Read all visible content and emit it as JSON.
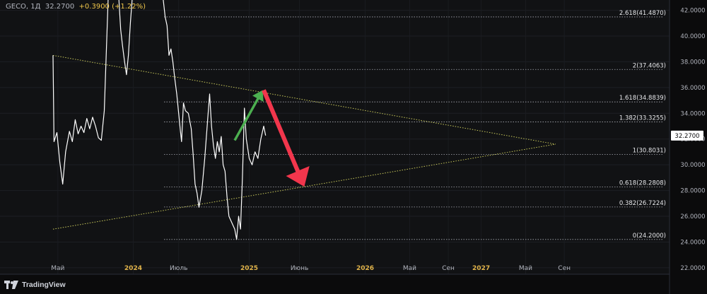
{
  "legend": {
    "symbol": "GECO",
    "interval": "1Д",
    "last": "32.2700",
    "change": "+0.3900",
    "change_pct": "(+1.22%)"
  },
  "branding": {
    "name": "TradingView"
  },
  "colors": {
    "background": "#0b0b0c",
    "plot_background": "#111214",
    "price_line": "#ffffff",
    "triangle_line": "#c8c85a",
    "fib_line": "#a9abb3",
    "up_arrow": "#4caf50",
    "down_arrow": "#f2364c",
    "axis_text": "#b2b5be",
    "year_text": "#e0b34a"
  },
  "chart_data": {
    "type": "line",
    "symbol": "GECO",
    "interval": "1Д",
    "price_axis": {
      "ylim": [
        21.5,
        42.8
      ],
      "ticks": [
        "42.0000",
        "40.0000",
        "38.0000",
        "36.0000",
        "34.0000",
        "32.0000",
        "30.0000",
        "28.0000",
        "26.0000",
        "24.0000",
        "22.0000"
      ],
      "current_price_label": "32.2700"
    },
    "time_axis": {
      "labels": [
        {
          "text": "Май",
          "t": 0.5,
          "year": false
        },
        {
          "text": "2024",
          "t": 8.3,
          "year": true
        },
        {
          "text": "Июль",
          "t": 13.0,
          "year": false
        },
        {
          "text": "2025",
          "t": 20.3,
          "year": true
        },
        {
          "text": "Июнь",
          "t": 25.5,
          "year": false
        },
        {
          "text": "2026",
          "t": 32.3,
          "year": true
        },
        {
          "text": "Май",
          "t": 36.9,
          "year": false
        },
        {
          "text": "Сен",
          "t": 40.9,
          "year": false
        },
        {
          "text": "2027",
          "t": 44.3,
          "year": true
        },
        {
          "text": "Май",
          "t": 48.9,
          "year": false
        },
        {
          "text": "Сен",
          "t": 52.9,
          "year": false
        }
      ]
    },
    "fib_levels": [
      {
        "ratio": "2.618",
        "value": 41.487,
        "label": "2.618(41.4870)"
      },
      {
        "ratio": "2",
        "value": 37.4063,
        "label": "2(37.4063)"
      },
      {
        "ratio": "1.618",
        "value": 34.8839,
        "label": "1.618(34.8839)"
      },
      {
        "ratio": "1.382",
        "value": 33.3255,
        "label": "1.382(33.3255)"
      },
      {
        "ratio": "1",
        "value": 30.8031,
        "label": "1(30.8031)"
      },
      {
        "ratio": "0.618",
        "value": 28.2808,
        "label": "0.618(28.2808)"
      },
      {
        "ratio": "0.382",
        "value": 26.7224,
        "label": "0.382(26.7224)"
      },
      {
        "ratio": "0",
        "value": 24.2,
        "label": "0(24.2000)"
      }
    ],
    "triangle": {
      "upper": [
        {
          "t": 0.0,
          "price": 38.5
        },
        {
          "t": 52.0,
          "price": 31.6
        }
      ],
      "lower": [
        {
          "t": 0.0,
          "price": 25.0
        },
        {
          "t": 52.0,
          "price": 31.6
        }
      ]
    },
    "arrows": [
      {
        "kind": "up",
        "from": {
          "t": 18.8,
          "price": 31.9
        },
        "to": {
          "t": 21.7,
          "price": 35.8
        }
      },
      {
        "kind": "down",
        "from": {
          "t": 21.8,
          "price": 35.8
        },
        "to": {
          "t": 26.0,
          "price": 28.3
        }
      }
    ],
    "series": [
      {
        "points": [
          [
            0.0,
            38.5
          ],
          [
            0.1,
            31.8
          ],
          [
            0.4,
            32.5
          ],
          [
            0.7,
            30.2
          ],
          [
            1.0,
            28.5
          ],
          [
            1.3,
            31.0
          ],
          [
            1.7,
            32.6
          ],
          [
            2.0,
            31.8
          ],
          [
            2.3,
            33.5
          ],
          [
            2.6,
            32.4
          ],
          [
            2.9,
            33.0
          ],
          [
            3.2,
            32.5
          ],
          [
            3.5,
            33.6
          ],
          [
            3.8,
            32.8
          ],
          [
            4.1,
            33.7
          ],
          [
            4.4,
            33.0
          ],
          [
            4.7,
            32.1
          ],
          [
            5.0,
            31.9
          ],
          [
            5.3,
            34.2
          ],
          [
            5.5,
            38.5
          ],
          [
            5.8,
            45.0
          ],
          [
            6.0,
            43.5
          ],
          [
            6.2,
            44.0
          ],
          [
            6.5,
            47.0
          ],
          [
            6.8,
            43.0
          ],
          [
            7.0,
            40.5
          ],
          [
            7.2,
            39.2
          ],
          [
            7.4,
            38.0
          ],
          [
            7.6,
            37.0
          ],
          [
            7.8,
            38.5
          ],
          [
            8.0,
            41.0
          ],
          [
            8.3,
            44.0
          ],
          [
            8.6,
            46.0
          ],
          [
            11.0,
            46.0
          ],
          [
            11.3,
            43.5
          ],
          [
            11.6,
            41.5
          ],
          [
            11.8,
            40.8
          ],
          [
            12.0,
            38.5
          ],
          [
            12.2,
            39.0
          ],
          [
            12.4,
            38.0
          ],
          [
            12.6,
            36.7
          ],
          [
            12.8,
            35.5
          ],
          [
            13.0,
            34.0
          ],
          [
            13.2,
            32.5
          ],
          [
            13.3,
            31.8
          ],
          [
            13.5,
            34.8
          ],
          [
            13.7,
            34.2
          ],
          [
            14.0,
            34.0
          ],
          [
            14.3,
            32.8
          ],
          [
            14.5,
            30.8
          ],
          [
            14.7,
            28.5
          ],
          [
            14.9,
            27.8
          ],
          [
            15.1,
            26.7
          ],
          [
            15.4,
            28.0
          ],
          [
            15.7,
            30.5
          ],
          [
            16.0,
            33.5
          ],
          [
            16.2,
            35.5
          ],
          [
            16.4,
            33.0
          ],
          [
            16.6,
            31.5
          ],
          [
            16.8,
            30.5
          ],
          [
            17.0,
            31.8
          ],
          [
            17.2,
            31.0
          ],
          [
            17.4,
            32.2
          ],
          [
            17.6,
            30.0
          ],
          [
            17.8,
            29.5
          ],
          [
            18.0,
            27.5
          ],
          [
            18.2,
            26.0
          ],
          [
            18.5,
            25.5
          ],
          [
            18.8,
            25.0
          ],
          [
            19.0,
            24.2
          ],
          [
            19.2,
            26.0
          ],
          [
            19.4,
            25.0
          ],
          [
            19.6,
            29.0
          ],
          [
            19.8,
            34.4
          ],
          [
            20.0,
            32.0
          ],
          [
            20.3,
            30.5
          ],
          [
            20.6,
            30.0
          ],
          [
            20.9,
            31.0
          ],
          [
            21.2,
            30.5
          ],
          [
            21.5,
            32.0
          ],
          [
            21.8,
            33.0
          ],
          [
            22.0,
            32.27
          ]
        ]
      }
    ]
  }
}
